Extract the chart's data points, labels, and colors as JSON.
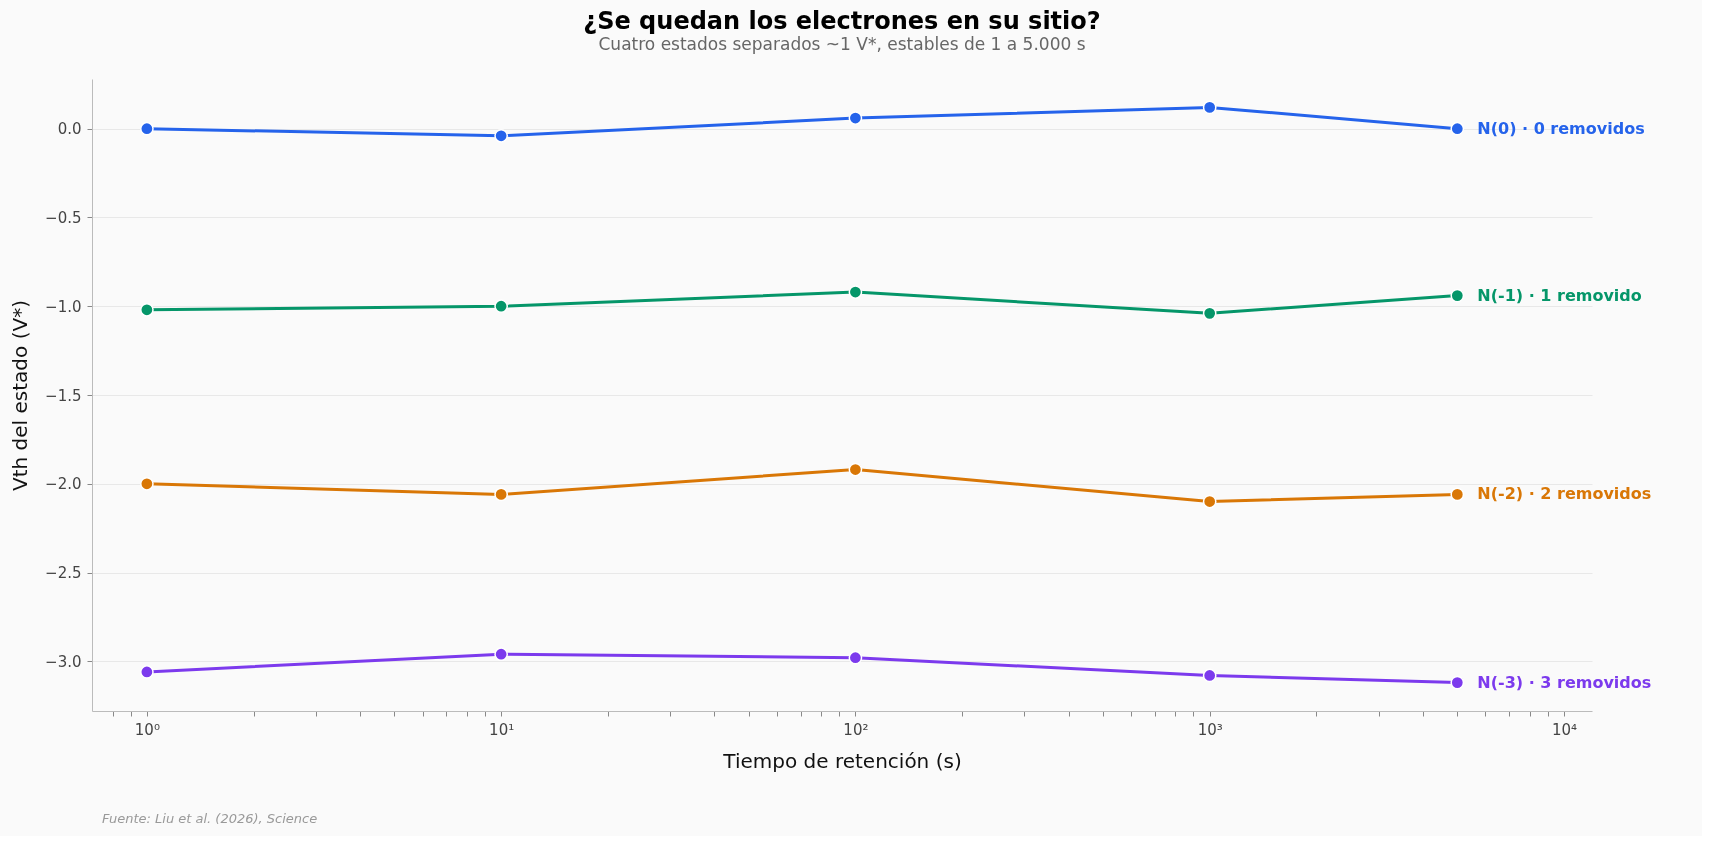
{
  "chart_data": {
    "type": "line",
    "title": "¿Se quedan los electrones en su sitio?",
    "subtitle": "Cuatro estados separados ~1 V*, estables de 1 a 5.000 s",
    "xlabel": "Tiempo de retención (s)",
    "ylabel": "Vth del estado (V*)",
    "annotations": [
      "Fuente: Liu et al. (2026), Science"
    ],
    "x": [
      1,
      10,
      100,
      1000,
      5000
    ],
    "series": [
      {
        "name": "N(0)  · 0 removidos",
        "color": "#2563eb",
        "values": [
          0.0,
          -0.04,
          0.06,
          0.12,
          0.0
        ]
      },
      {
        "name": "N(-1) · 1 removido",
        "color": "#059669",
        "values": [
          -1.02,
          -1.0,
          -0.92,
          -1.04,
          -0.94
        ]
      },
      {
        "name": "N(-2) · 2 removidos",
        "color": "#d97706",
        "values": [
          -2.0,
          -2.06,
          -1.92,
          -2.1,
          -2.06
        ]
      },
      {
        "name": "N(-3) · 3 removidos",
        "color": "#7c3aed",
        "values": [
          -3.06,
          -2.96,
          -2.98,
          -3.08,
          -3.12
        ]
      }
    ],
    "log": "x",
    "xlim": [
      0.7,
      12000
    ],
    "ylim": [
      -3.28,
      0.28
    ],
    "xticks": [
      {
        "value": 0.8,
        "label": null
      },
      {
        "value": 0.9,
        "label": null
      },
      {
        "value": 1,
        "label": "10⁰"
      },
      {
        "value": 2,
        "label": null
      },
      {
        "value": 3,
        "label": null
      },
      {
        "value": 4,
        "label": null
      },
      {
        "value": 5,
        "label": null
      },
      {
        "value": 6,
        "label": null
      },
      {
        "value": 7,
        "label": null
      },
      {
        "value": 8,
        "label": null
      },
      {
        "value": 9,
        "label": null
      },
      {
        "value": 10,
        "label": "10¹"
      },
      {
        "value": 20,
        "label": null
      },
      {
        "value": 30,
        "label": null
      },
      {
        "value": 40,
        "label": null
      },
      {
        "value": 50,
        "label": null
      },
      {
        "value": 60,
        "label": null
      },
      {
        "value": 70,
        "label": null
      },
      {
        "value": 80,
        "label": null
      },
      {
        "value": 90,
        "label": null
      },
      {
        "value": 100,
        "label": "10²"
      },
      {
        "value": 200,
        "label": null
      },
      {
        "value": 300,
        "label": null
      },
      {
        "value": 400,
        "label": null
      },
      {
        "value": 500,
        "label": null
      },
      {
        "value": 600,
        "label": null
      },
      {
        "value": 700,
        "label": null
      },
      {
        "value": 800,
        "label": null
      },
      {
        "value": 900,
        "label": null
      },
      {
        "value": 1000,
        "label": "10³"
      },
      {
        "value": 2000,
        "label": null
      },
      {
        "value": 3000,
        "label": null
      },
      {
        "value": 4000,
        "label": null
      },
      {
        "value": 5000,
        "label": null
      },
      {
        "value": 6000,
        "label": null
      },
      {
        "value": 7000,
        "label": null
      },
      {
        "value": 8000,
        "label": null
      },
      {
        "value": 9000,
        "label": null
      },
      {
        "value": 10000,
        "label": "10⁴"
      }
    ],
    "yticks": [
      {
        "value": -3.0,
        "label": "−3.0"
      },
      {
        "value": -2.5,
        "label": "−2.5"
      },
      {
        "value": -2.0,
        "label": "−2.0"
      },
      {
        "value": -1.5,
        "label": "−1.5"
      },
      {
        "value": -1.0,
        "label": "−1.0"
      },
      {
        "value": -0.5,
        "label": "−0.5"
      },
      {
        "value": 0.0,
        "label": "0.0"
      }
    ],
    "grid": "y",
    "legend": false,
    "marker": "circle",
    "line_style": "solid"
  }
}
